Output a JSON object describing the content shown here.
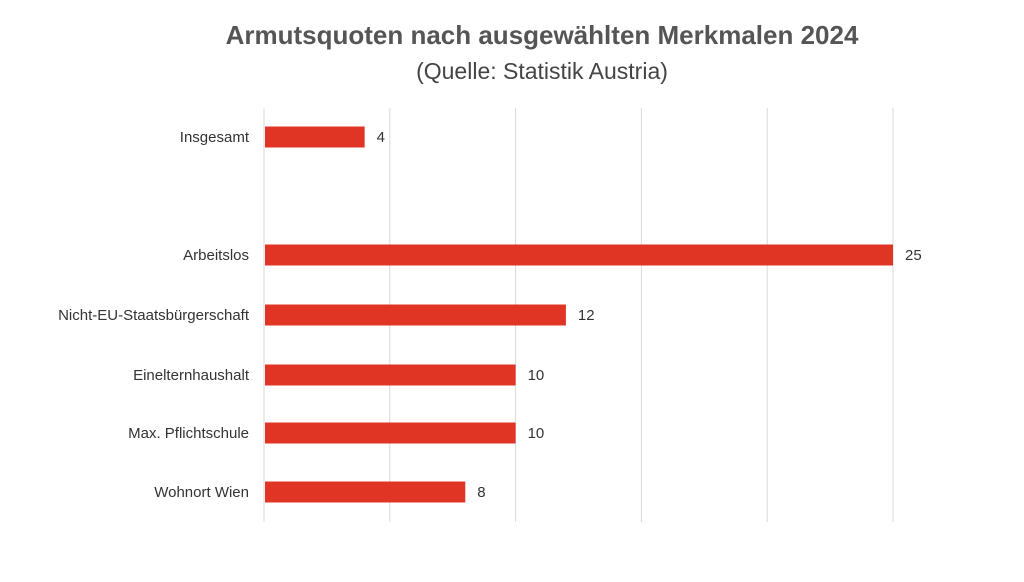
{
  "chart_data": {
    "type": "bar",
    "orientation": "horizontal",
    "title": "Armutsquoten nach ausgewählten Merkmalen 2024",
    "subtitle": "(Quelle: Statistik Austria)",
    "categories": [
      "Insgesamt",
      "Arbeitslos",
      "Nicht-EU-Staatsbürgerschaft",
      "Einelternhaushalt",
      "Max. Pflichtschule",
      "Wohnort Wien"
    ],
    "values": [
      4,
      25,
      12,
      10,
      10,
      8
    ],
    "xlim": [
      0,
      25
    ],
    "grid_step": 5,
    "grid": true,
    "color": "#e03524",
    "gridline_color": "#d9d9d9"
  }
}
